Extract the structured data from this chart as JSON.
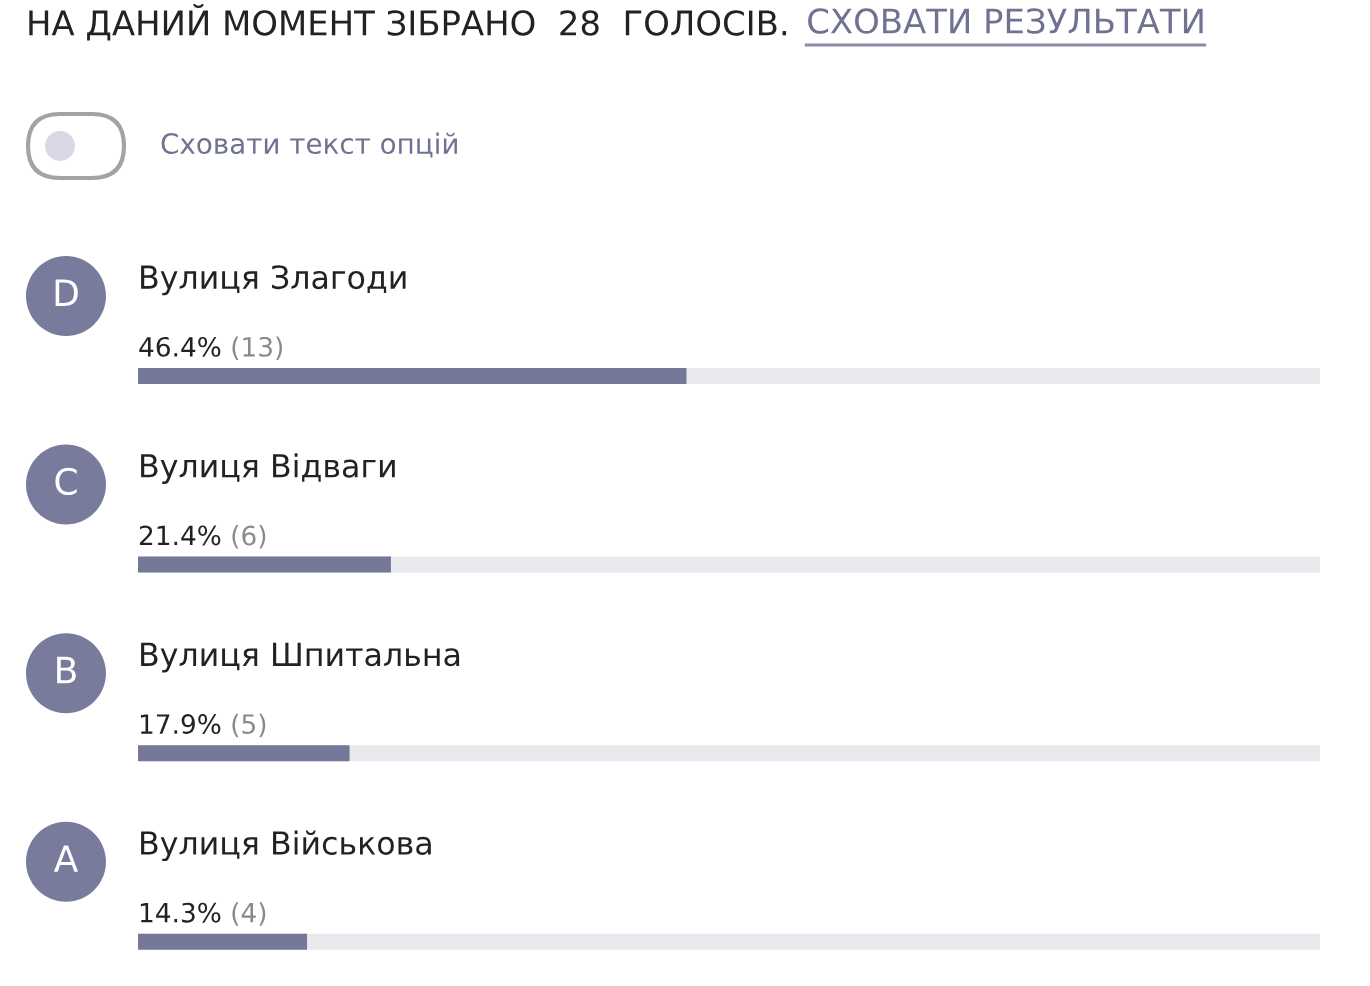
{
  "chart_data": {
    "type": "bar",
    "orientation": "horizontal",
    "title": "НА ДАНИЙ МОМЕНТ ЗІБРАНО  28  ГОЛОСІВ.",
    "categories": [
      "Вулиця Злагоди",
      "Вулиця Відваги",
      "Вулиця Шпитальна",
      "Вулиця Військова"
    ],
    "values": [
      46.4,
      21.4,
      17.9,
      14.3
    ],
    "value_labels": [
      "46.4% (13)",
      "21.4% (6)",
      "17.9% (5)",
      "14.3% (4)"
    ],
    "color": "#757899",
    "xlim": [
      0,
      100
    ],
    "tick_labels": "y",
    "annotations": [
      "СХОВАТИ РЕЗУЛЬТАТИ",
      "Сховати текст опцій",
      "D",
      "C",
      "B",
      "A"
    ]
  }
}
